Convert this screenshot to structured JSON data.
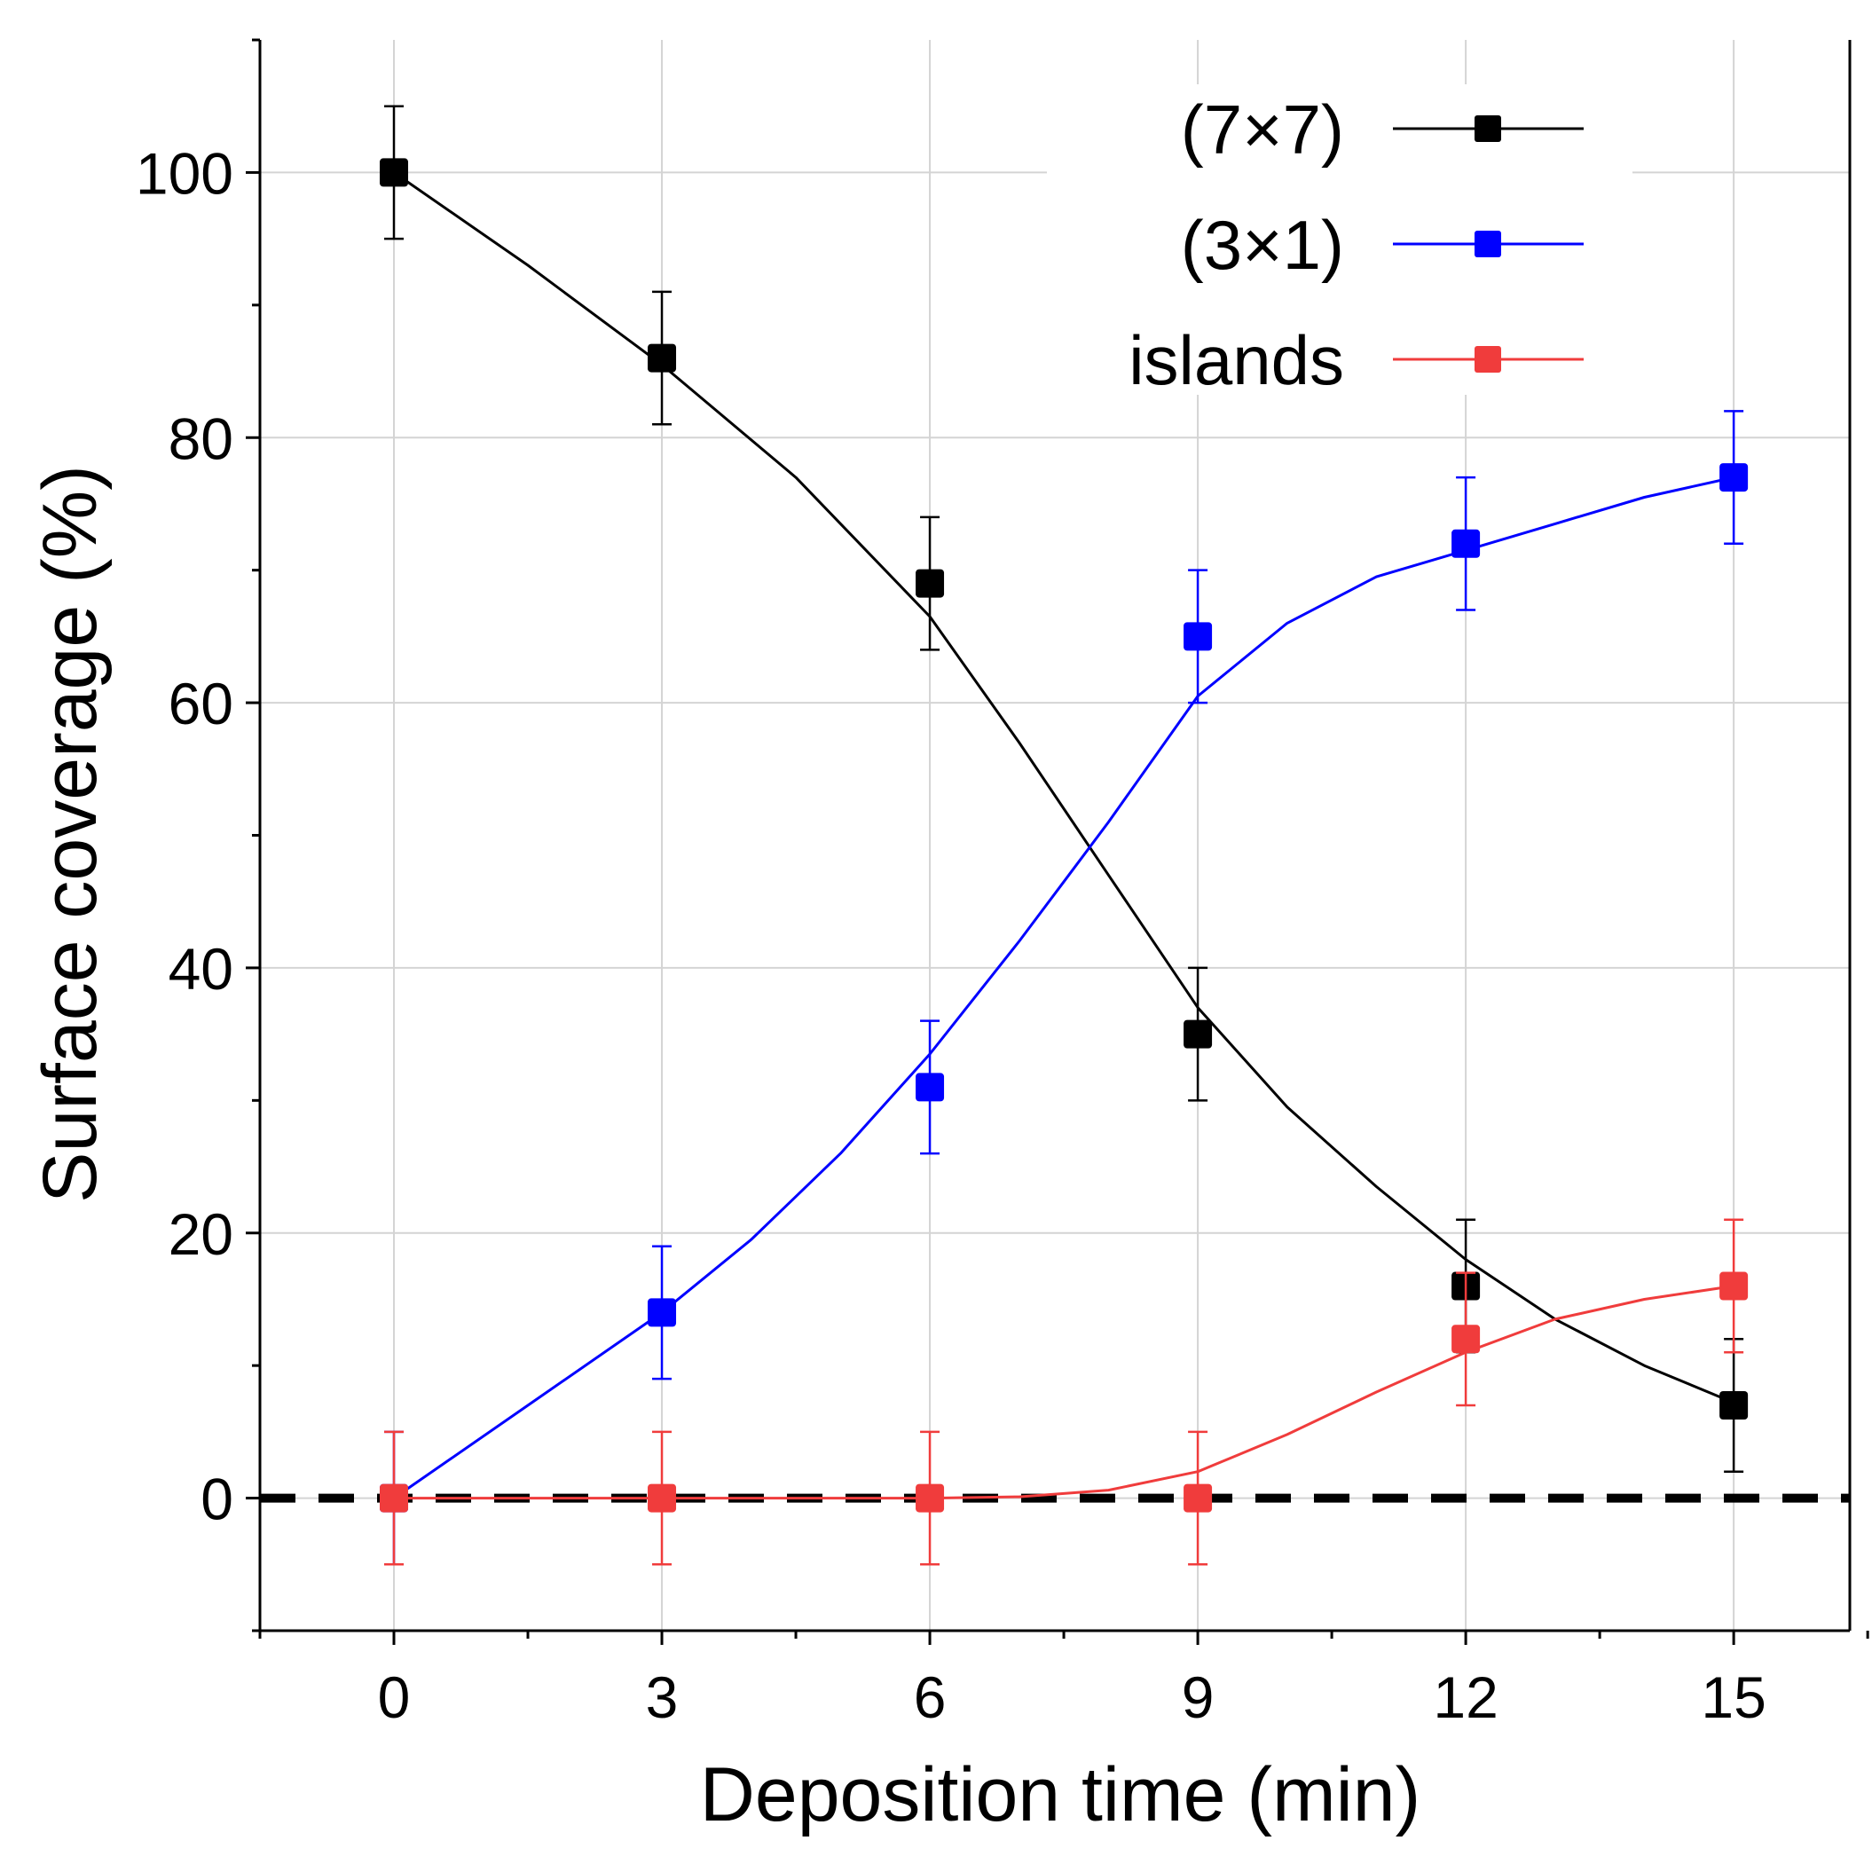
{
  "chart_data": {
    "type": "line",
    "title": "",
    "xlabel": "Deposition time (min)",
    "ylabel": "Surface coverage (%)",
    "xlim": [
      -1.5,
      16.3
    ],
    "ylim": [
      -10,
      110
    ],
    "x_ticks": [
      0,
      3,
      6,
      9,
      12,
      15
    ],
    "x_tick_labels": [
      "0",
      "3",
      "6",
      "9",
      "12",
      "15"
    ],
    "x_minor_ticks": [
      -1.5,
      1.5,
      4.5,
      7.5,
      10.5,
      13.5,
      16.5
    ],
    "y_ticks": [
      0,
      20,
      40,
      60,
      80,
      100
    ],
    "y_tick_labels": [
      "0",
      "20",
      "40",
      "60",
      "80",
      "100"
    ],
    "y_minor_ticks": [
      -10,
      10,
      30,
      50,
      70,
      90,
      110
    ],
    "grid": true,
    "legend_position": "top-right",
    "reference_line": {
      "y": 0,
      "style": "dashed",
      "color": "#000000"
    },
    "series": [
      {
        "name": "(7×7)",
        "color": "#000000",
        "x": [
          0,
          3,
          6,
          9,
          12,
          15
        ],
        "values": [
          100,
          86,
          69,
          35,
          16,
          7
        ],
        "errors": [
          5,
          5,
          5,
          5,
          5,
          5
        ],
        "fit": [
          [
            0,
            100
          ],
          [
            1.5,
            93
          ],
          [
            3,
            85.5
          ],
          [
            4.5,
            77
          ],
          [
            6,
            66.5
          ],
          [
            7,
            57
          ],
          [
            7.5,
            52
          ],
          [
            8,
            47
          ],
          [
            9,
            37
          ],
          [
            10,
            29.5
          ],
          [
            11,
            23.5
          ],
          [
            12,
            18
          ],
          [
            13,
            13.5
          ],
          [
            14,
            10
          ],
          [
            15,
            7.2
          ]
        ]
      },
      {
        "name": "(3×1)",
        "color": "#0000ff",
        "x": [
          0,
          3,
          6,
          9,
          12,
          15
        ],
        "values": [
          0,
          14,
          31,
          65,
          72,
          77
        ],
        "errors": [
          5,
          5,
          5,
          5,
          5,
          5
        ],
        "fit": [
          [
            0,
            0
          ],
          [
            1.5,
            7
          ],
          [
            3,
            14
          ],
          [
            4,
            19.5
          ],
          [
            5,
            26
          ],
          [
            6,
            33.5
          ],
          [
            7,
            42
          ],
          [
            7.5,
            46.5
          ],
          [
            8,
            51
          ],
          [
            9,
            60.5
          ],
          [
            10,
            66
          ],
          [
            11,
            69.5
          ],
          [
            12,
            71.5
          ],
          [
            13,
            73.5
          ],
          [
            14,
            75.5
          ],
          [
            15,
            77
          ]
        ]
      },
      {
        "name": "islands",
        "color": "#f03c3c",
        "x": [
          0,
          3,
          6,
          9,
          12,
          15
        ],
        "values": [
          0,
          0,
          0,
          0,
          12,
          16
        ],
        "errors": [
          5,
          5,
          5,
          5,
          5,
          5
        ],
        "fit": [
          [
            0,
            0
          ],
          [
            3,
            0
          ],
          [
            6,
            0
          ],
          [
            7,
            0.1
          ],
          [
            8,
            0.6
          ],
          [
            9,
            2
          ],
          [
            10,
            4.8
          ],
          [
            11,
            8
          ],
          [
            12,
            11
          ],
          [
            13,
            13.5
          ],
          [
            14,
            15
          ],
          [
            15,
            16
          ]
        ]
      }
    ]
  }
}
